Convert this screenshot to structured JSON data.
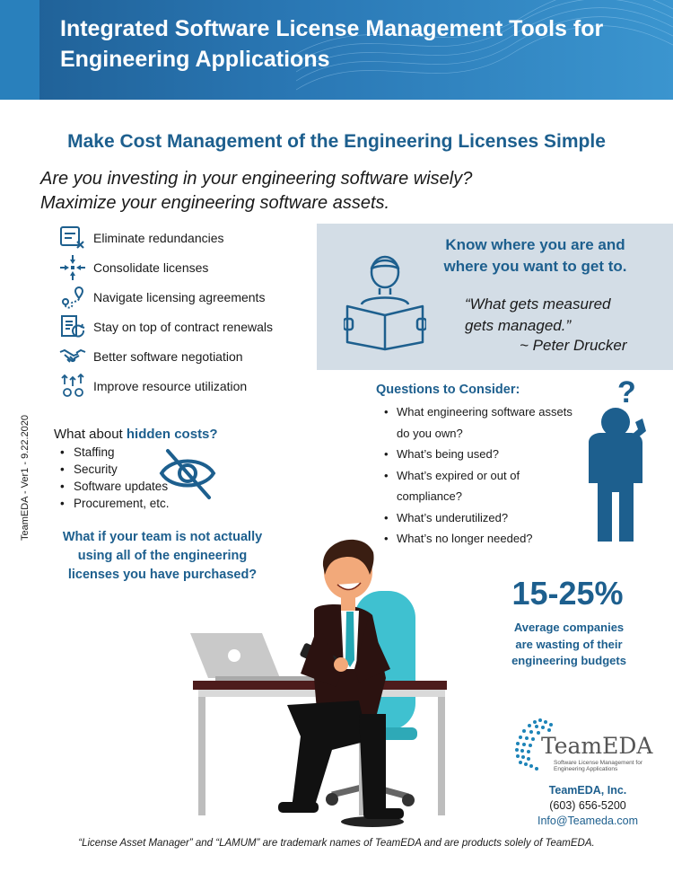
{
  "header": {
    "title_line1": "Integrated Software License Management Tools for",
    "title_line2": "Engineering Applications"
  },
  "subtitle": "Make Cost Management of the Engineering Licenses Simple",
  "intro": {
    "line1": "Are you investing in your engineering software wisely?",
    "line2": "Maximize your engineering software assets."
  },
  "benefits": [
    {
      "label": "Eliminate redundancies",
      "icon": "checklist-x-icon"
    },
    {
      "label": "Consolidate licenses",
      "icon": "arrows-inward-icon"
    },
    {
      "label": "Navigate licensing agreements",
      "icon": "route-pin-icon"
    },
    {
      "label": "Stay on top of contract renewals",
      "icon": "document-refresh-icon"
    },
    {
      "label": "Better software negotiation",
      "icon": "handshake-icon"
    },
    {
      "label": "Improve resource utilization",
      "icon": "gears-growth-icon"
    }
  ],
  "know_box": {
    "title_line1": "Know where you are and",
    "title_line2": "where you want to get to.",
    "quote_line1": "“What gets measured",
    "quote_line2": "gets managed.”",
    "author": "~ Peter Drucker",
    "bg_color": "#d3dde6"
  },
  "side_label": "TeamEDA - Ver1 - 9.22.2020",
  "hidden_costs": {
    "heading_prefix": "What about ",
    "heading_highlight": "hidden costs?",
    "items": [
      "Staffing",
      "Security",
      "Software updates",
      "Procurement, etc."
    ]
  },
  "team_question": {
    "line1": "What if your team is not actually",
    "line2": "using all of the engineering",
    "line3": "licenses you have purchased?"
  },
  "questions": {
    "title": "Questions to Consider:",
    "items": [
      {
        "line1": "What engineering software assets",
        "line2": "do you own?"
      },
      {
        "line1": "What’s being used?"
      },
      {
        "line1": "What’s expired or out of",
        "line2": "compliance?"
      },
      {
        "line1": "What’s underutilized?"
      },
      {
        "line1": "What’s no longer needed?"
      }
    ]
  },
  "stat": {
    "value": "15-25%",
    "caption_line1": "Average companies",
    "caption_line2": "are wasting of their",
    "caption_line3": "engineering budgets"
  },
  "logo": {
    "word": "TeamEDA",
    "tag_line1": "Software License Management for",
    "tag_line2": "Engineering Applications"
  },
  "company": {
    "name": "TeamEDA, Inc.",
    "phone": "(603) 656-5200",
    "email": "Info@Teameda.com"
  },
  "footer": "“License Asset Manager” and “LAMUM” are trademark names of TeamEDA and are products solely of TeamEDA.",
  "colors": {
    "accent": "#1d5f8e",
    "header": "#2a78b5",
    "icon": "#1d5f8e",
    "chair": "#3fc1d0"
  }
}
